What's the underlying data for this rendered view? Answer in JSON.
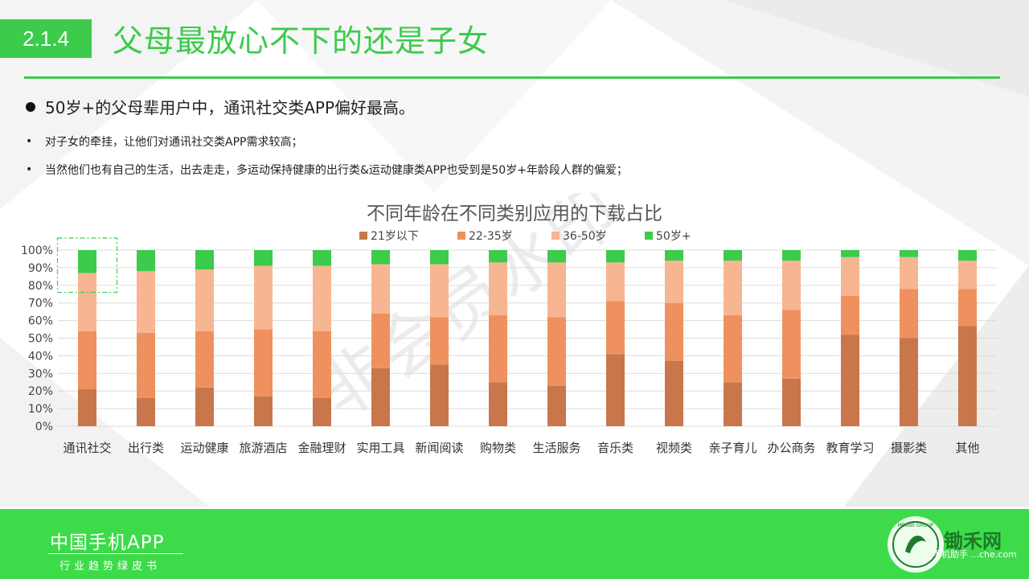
{
  "header": {
    "section_number": "2.1.4",
    "title": "父母最放心不下的还是子女"
  },
  "content": {
    "headline": "50岁+的父母辈用户中，通讯社交类APP偏好最高。",
    "bullet_mark": "•",
    "bullets": [
      "对子女的牵挂，让他们对通讯社交类APP需求较高；",
      "当然他们也有自己的生活，出去走走，多运动保持健康的出行类&运动健康类APP也受到是50岁+年龄段人群的偏爱；"
    ]
  },
  "watermark": "非会员水印",
  "colors": {
    "accent": "#3ccb4b",
    "footer_bg": "#3ddb4a",
    "series": [
      "#c8764b",
      "#ef915e",
      "#f7b592",
      "#3ccb4b"
    ]
  },
  "chart_data": {
    "type": "bar",
    "stacked": true,
    "percent": true,
    "title": "不同年龄在不同类别应用的下载占比",
    "legend_position": "top",
    "grid": true,
    "ylim": [
      0,
      100
    ],
    "yticks": [
      "0%",
      "10%",
      "20%",
      "30%",
      "40%",
      "50%",
      "60%",
      "70%",
      "80%",
      "90%",
      "100%"
    ],
    "highlight_category": "通讯社交",
    "categories": [
      "通讯社交",
      "出行类",
      "运动健康",
      "旅游酒店",
      "金融理财",
      "实用工具",
      "新闻阅读",
      "购物类",
      "生活服务",
      "音乐类",
      "视频类",
      "亲子育儿",
      "办公商务",
      "教育学习",
      "摄影类",
      "其他"
    ],
    "series": [
      {
        "name": "21岁以下",
        "values": [
          21,
          16,
          22,
          17,
          16,
          33,
          35,
          25,
          23,
          41,
          37,
          25,
          27,
          52,
          50,
          57
        ]
      },
      {
        "name": "22-35岁",
        "values": [
          33,
          37,
          32,
          38,
          38,
          31,
          27,
          38,
          39,
          30,
          33,
          38,
          39,
          22,
          28,
          21
        ]
      },
      {
        "name": "36-50岁",
        "values": [
          33,
          35,
          35,
          36,
          37,
          28,
          30,
          30,
          31,
          22,
          24,
          31,
          28,
          22,
          18,
          16
        ]
      },
      {
        "name": "50岁+",
        "values": [
          13,
          12,
          11,
          9,
          9,
          8,
          8,
          7,
          7,
          7,
          6,
          6,
          6,
          4,
          4,
          6
        ]
      }
    ]
  },
  "footer": {
    "brand_title": "中国手机APP",
    "brand_subtitle": "行业趋势绿皮书",
    "logo_name": "锄禾网",
    "logo_sub": "手机助手 ...che.com",
    "badge_text": "MEANS GROUP"
  }
}
